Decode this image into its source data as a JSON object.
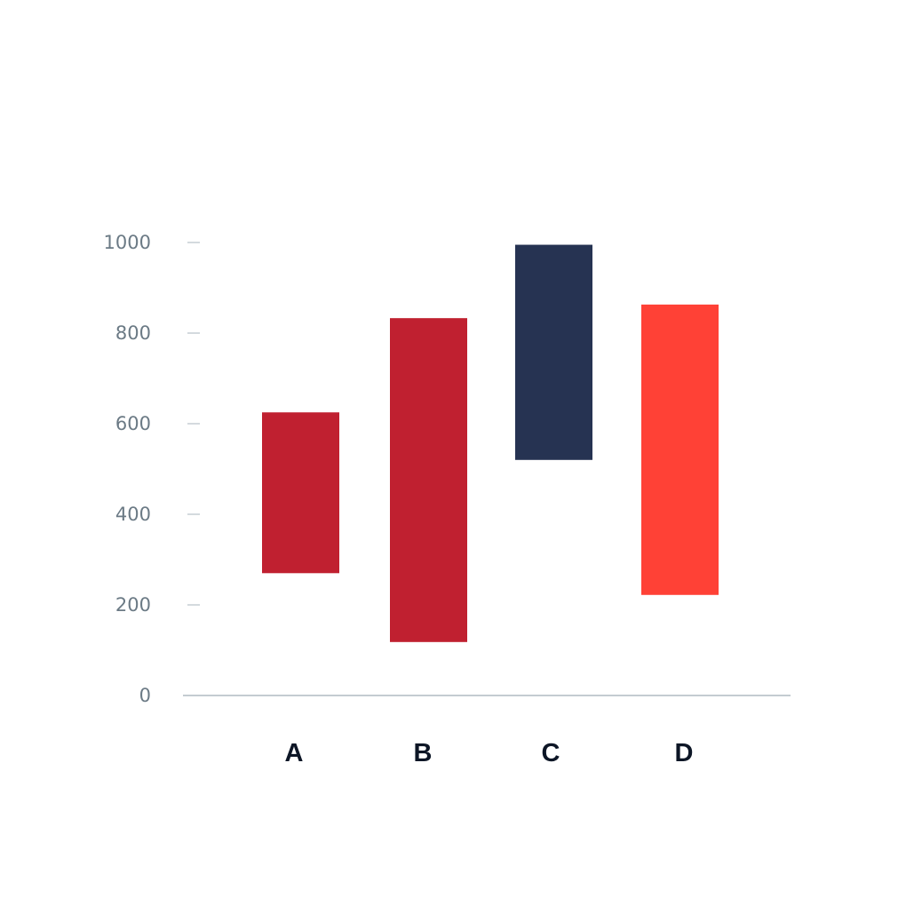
{
  "chart_data": {
    "type": "bar",
    "subtype": "floating-range",
    "title": "",
    "xlabel": "",
    "ylabel": "",
    "ylim": [
      0,
      1000
    ],
    "yticks": [
      0,
      200,
      400,
      600,
      800,
      1000
    ],
    "grid": false,
    "legend": "none",
    "categories": [
      "A",
      "B",
      "C",
      "D"
    ],
    "ranges": [
      {
        "category": "A",
        "low": 270,
        "high": 625,
        "color": "#c02030"
      },
      {
        "category": "B",
        "low": 118,
        "high": 833,
        "color": "#c02030"
      },
      {
        "category": "C",
        "low": 520,
        "high": 995,
        "color": "#263352"
      },
      {
        "category": "D",
        "low": 222,
        "high": 863,
        "color": "#ff4136"
      }
    ]
  },
  "colors": {
    "axis": "#6b7a85",
    "tick_text": "#6b7a85",
    "category_text": "#0d1626"
  }
}
